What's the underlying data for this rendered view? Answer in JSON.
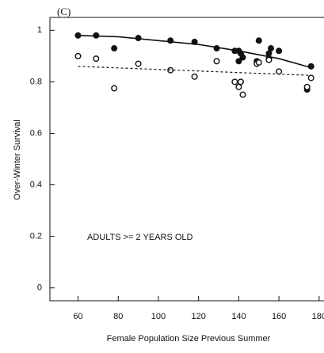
{
  "chart_data": {
    "type": "scatter",
    "title": "(C)",
    "annotation": "ADULTS >= 2 YEARS OLD",
    "xlabel": "Female Population Size Previous Summer",
    "ylabel": "Over-Winter Survival",
    "xlim": [
      46,
      184
    ],
    "xticks": [
      60,
      80,
      100,
      120,
      140,
      160,
      180
    ],
    "ylim": [
      -0.05,
      1.05
    ],
    "yticks": [
      0,
      0.2,
      0.4,
      0.6,
      0.8,
      1.0
    ],
    "series": [
      {
        "marker": "filled",
        "color": "#111111",
        "x": [
          60,
          69,
          78,
          90,
          106,
          118,
          129,
          138,
          140,
          140,
          141,
          142,
          149,
          150,
          155,
          156,
          160,
          174,
          176
        ],
        "values": [
          0.98,
          0.98,
          0.93,
          0.97,
          0.96,
          0.955,
          0.93,
          0.92,
          0.88,
          0.92,
          0.91,
          0.895,
          0.88,
          0.96,
          0.91,
          0.93,
          0.92,
          0.77,
          0.86
        ]
      },
      {
        "marker": "open",
        "color": "#111111",
        "x": [
          60,
          69,
          78,
          90,
          106,
          118,
          129,
          138,
          140,
          141,
          142,
          149,
          150,
          155,
          155,
          160,
          174,
          176
        ],
        "values": [
          0.9,
          0.89,
          0.775,
          0.87,
          0.845,
          0.82,
          0.88,
          0.8,
          0.78,
          0.8,
          0.75,
          0.87,
          0.875,
          0.89,
          0.885,
          0.84,
          0.78,
          0.815
        ]
      },
      {
        "marker": "line",
        "dash": false,
        "color": "#111111",
        "x": [
          60,
          80,
          100,
          120,
          140,
          160,
          176
        ],
        "values": [
          0.98,
          0.975,
          0.96,
          0.945,
          0.92,
          0.89,
          0.855
        ]
      },
      {
        "marker": "line",
        "dash": true,
        "color": "#111111",
        "x": [
          60,
          176
        ],
        "values": [
          0.86,
          0.825
        ]
      }
    ]
  }
}
